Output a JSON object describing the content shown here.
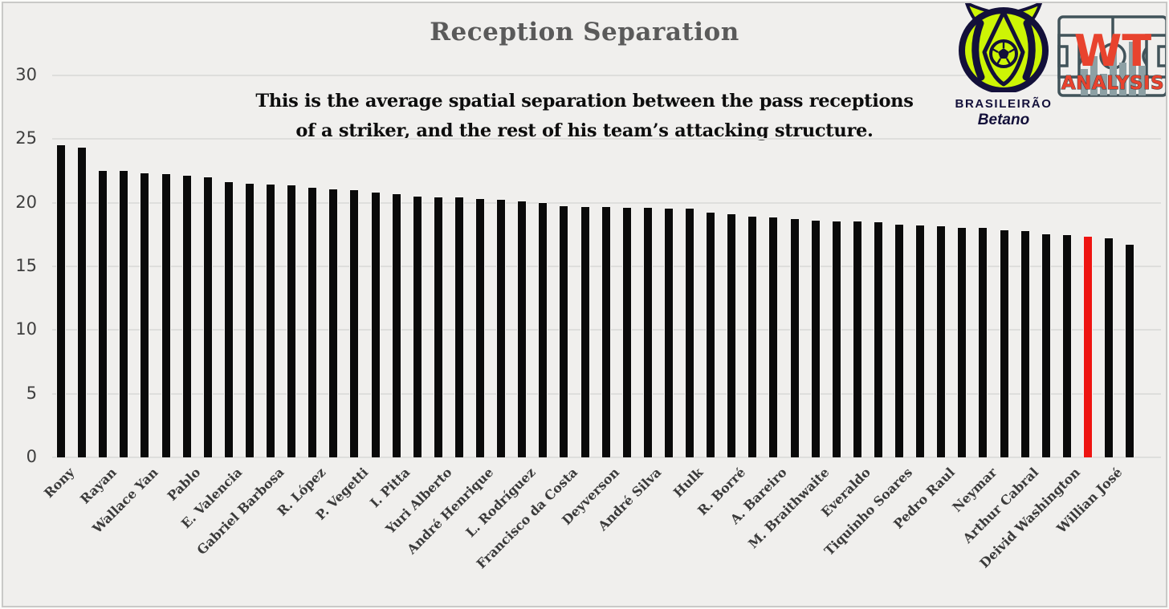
{
  "title": "Reception Separation",
  "subtitle": {
    "line1": "This is the average spatial separation between the pass receptions",
    "line2": "of a striker, and the rest of his team’s attacking structure."
  },
  "branding": {
    "brasileirao": "BRASILEIRÃO",
    "betano": "Betano",
    "wt": "WT",
    "analysis": "ANALYSIS"
  },
  "colors": {
    "background": "#f0efed",
    "bar": "#0a0a0a",
    "highlight": "#ee1411",
    "grid": "#dededc",
    "title": "#5a5a5a",
    "subtitle": "#0d0d0d",
    "tick": "#3f3f3f",
    "xlabel": "#3a3a3a",
    "wt_red": "#e8432e",
    "pitch_line": "#41535a",
    "pitch_bar": "#8da0a4",
    "badge_green": "#cdf405",
    "badge_navy": "#13103a"
  },
  "chart_data": {
    "type": "bar",
    "title": "Reception Separation",
    "xlabel": "",
    "ylabel": "",
    "ylim": [
      0,
      30
    ],
    "yticks": [
      0,
      5,
      10,
      15,
      20,
      25,
      30
    ],
    "grid": "horizontal",
    "note": "52 bars sorted descending; only every second bar carries a player name; one unlabeled bar is highlighted red",
    "highlighted_index": 49,
    "bars": [
      {
        "label": "Rony",
        "value": 24.5
      },
      {
        "label": "",
        "value": 24.3
      },
      {
        "label": "Rayan",
        "value": 22.5
      },
      {
        "label": "",
        "value": 22.5
      },
      {
        "label": "Wallace Yan",
        "value": 22.3
      },
      {
        "label": "",
        "value": 22.25
      },
      {
        "label": "Pablo",
        "value": 22.1
      },
      {
        "label": "",
        "value": 22.0
      },
      {
        "label": "E. Valencia",
        "value": 21.6
      },
      {
        "label": "",
        "value": 21.5
      },
      {
        "label": "Gabriel Barbosa",
        "value": 21.45
      },
      {
        "label": "",
        "value": 21.35
      },
      {
        "label": "R. López",
        "value": 21.15
      },
      {
        "label": "",
        "value": 21.05
      },
      {
        "label": "P. Vegetti",
        "value": 21.0
      },
      {
        "label": "",
        "value": 20.8
      },
      {
        "label": "I. Pitta",
        "value": 20.65
      },
      {
        "label": "",
        "value": 20.5
      },
      {
        "label": "Yuri Alberto",
        "value": 20.45
      },
      {
        "label": "",
        "value": 20.4
      },
      {
        "label": "André Henrique",
        "value": 20.3
      },
      {
        "label": "",
        "value": 20.2
      },
      {
        "label": "L. Rodríguez",
        "value": 20.1
      },
      {
        "label": "",
        "value": 19.95
      },
      {
        "label": "Francisco da Costa",
        "value": 19.75
      },
      {
        "label": "",
        "value": 19.65
      },
      {
        "label": "Deyverson",
        "value": 19.65
      },
      {
        "label": "",
        "value": 19.6
      },
      {
        "label": "André Silva",
        "value": 19.6
      },
      {
        "label": "",
        "value": 19.55
      },
      {
        "label": "Hulk",
        "value": 19.55
      },
      {
        "label": "",
        "value": 19.25
      },
      {
        "label": "R. Borré",
        "value": 19.1
      },
      {
        "label": "",
        "value": 18.9
      },
      {
        "label": "A. Bareiro",
        "value": 18.85
      },
      {
        "label": "",
        "value": 18.7
      },
      {
        "label": "M. Braithwaite",
        "value": 18.6
      },
      {
        "label": "",
        "value": 18.55
      },
      {
        "label": "Everaldo",
        "value": 18.5
      },
      {
        "label": "",
        "value": 18.45
      },
      {
        "label": "Tiquinho Soares",
        "value": 18.25
      },
      {
        "label": "",
        "value": 18.2
      },
      {
        "label": "Pedro Raul",
        "value": 18.15
      },
      {
        "label": "",
        "value": 18.05
      },
      {
        "label": "Neymar",
        "value": 18.0
      },
      {
        "label": "",
        "value": 17.85
      },
      {
        "label": "Arthur Cabral",
        "value": 17.75
      },
      {
        "label": "",
        "value": 17.55
      },
      {
        "label": "Deivid Washington",
        "value": 17.45
      },
      {
        "label": "",
        "value": 17.35,
        "highlighted": true
      },
      {
        "label": "Willian José",
        "value": 17.2
      },
      {
        "label": "",
        "value": 16.7
      }
    ]
  }
}
